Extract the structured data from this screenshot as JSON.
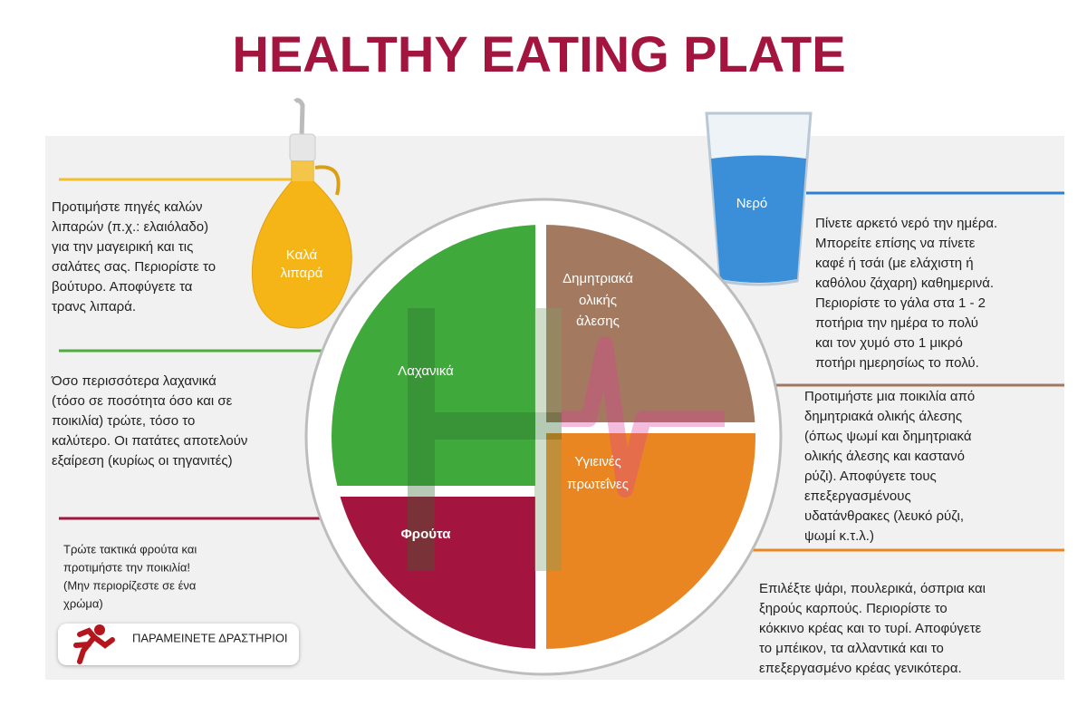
{
  "title": "HEALTHY EATING PLATE",
  "oil": {
    "label": [
      "Καλά",
      "λιπαρά"
    ]
  },
  "water": {
    "label": "Νερό"
  },
  "plate": {
    "grains": [
      "Δημητριακά",
      "ολικής",
      "άλεσης"
    ],
    "vegetables": "Λαχανικά",
    "protein": [
      "Υγιεινές",
      "πρωτεΐνες"
    ],
    "fruits": "Φρούτα"
  },
  "left_notes": [
    [
      "Προτιμήστε πηγές καλών",
      "λιπαρών (π.χ.: ελαιόλαδο)",
      "για την μαγειρική και τις",
      "σαλάτες σας. Περιορίστε το",
      "βούτυρο. Αποφύγετε τα",
      "τρανς λιπαρά."
    ],
    [
      "Όσο περισσότερα λαχανικά",
      "(τόσο σε ποσότητα όσο και σε",
      "ποικιλία) τρώτε, τόσο το",
      "καλύτερο. Οι πατάτες αποτελούν",
      "εξαίρεση (κυρίως οι τηγανιτές)"
    ],
    [
      "Τρώτε τακτικά φρούτα και",
      "προτιμήστε την ποικιλία!",
      "(Μην περιορίζεστε σε ένα",
      "χρώμα)"
    ]
  ],
  "right_notes": [
    [
      "Πίνετε αρκετό νερό την ημέρα.",
      "Μπορείτε επίσης να πίνετε",
      "καφέ ή τσάι (με ελάχιστη ή",
      "καθόλου ζάχαρη) καθημερινά.",
      "Περιορίστε το γάλα στα 1 - 2",
      "ποτήρια την ημέρα το πολύ",
      "και τον χυμό στο 1 μικρό",
      "ποτήρι ημερησίως το πολύ."
    ],
    [
      "Προτιμήστε μια ποικιλία από",
      "δημητριακά ολικής άλεσης",
      "(όπως ψωμί και δημητριακά",
      "ολικής άλεσης και καστανό",
      "ρύζι). Αποφύγετε τους",
      "επεξεργασμένους",
      "υδατάνθρακες (λευκό ρύζι,",
      "ψωμί κ.τ.λ.)"
    ],
    [
      "Επιλέξτε ψάρι, πουλερικά, όσπρια και",
      "ξηρούς καρπούς. Περιορίστε το",
      "κόκκινο κρέας και το τυρί. Αποφύγετε",
      "το μπέικον, τα αλλαντικά και το",
      "επεξεργασμένο κρέας γενικότερα."
    ]
  ],
  "activity": "ΠΑΡΑΜΕΙΝΕΤΕ ΔΡΑΣΤΗΡΙΟΙ"
}
